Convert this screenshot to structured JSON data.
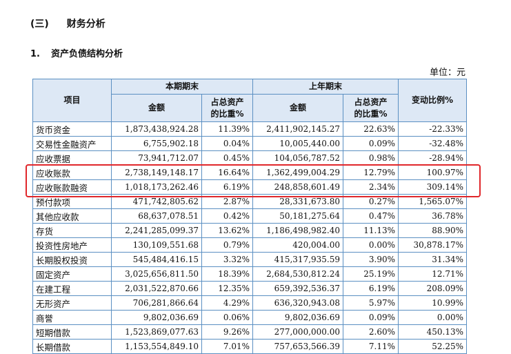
{
  "section_title": {
    "number": "(三)",
    "text": "财务分析"
  },
  "subsection_title": {
    "number": "1.",
    "text": "资产负债结构分析"
  },
  "unit_label": "单位：元",
  "table": {
    "headers": {
      "item": "项目",
      "current_period": "本期期末",
      "previous_year": "上年期末",
      "change_ratio": "变动比例%",
      "amount": "金额",
      "share_line1": "占总资产",
      "share_line2": "的比重%"
    },
    "rows": [
      {
        "name": "货币资金",
        "cur_amount": "1,873,438,924.28",
        "cur_share": "11.39%",
        "prev_amount": "2,411,902,145.27",
        "prev_share": "22.63%",
        "change": "-22.33%"
      },
      {
        "name": "交易性金融资产",
        "cur_amount": "6,755,902.18",
        "cur_share": "0.04%",
        "prev_amount": "10,005,440.00",
        "prev_share": "0.09%",
        "change": "-32.48%"
      },
      {
        "name": "应收票据",
        "cur_amount": "73,941,712.07",
        "cur_share": "0.45%",
        "prev_amount": "104,056,787.52",
        "prev_share": "0.98%",
        "change": "-28.94%"
      },
      {
        "name": "应收账款",
        "cur_amount": "2,738,149,148.17",
        "cur_share": "16.64%",
        "prev_amount": "1,362,499,004.29",
        "prev_share": "12.79%",
        "change": "100.97%"
      },
      {
        "name": "应收账款融资",
        "cur_amount": "1,018,173,262.46",
        "cur_share": "6.19%",
        "prev_amount": "248,858,601.49",
        "prev_share": "2.34%",
        "change": "309.14%"
      },
      {
        "name": "预付款项",
        "cur_amount": "471,742,805.62",
        "cur_share": "2.87%",
        "prev_amount": "28,331,673.80",
        "prev_share": "0.27%",
        "change": "1,565.07%"
      },
      {
        "name": "其他应收款",
        "cur_amount": "68,637,078.51",
        "cur_share": "0.42%",
        "prev_amount": "50,181,275.64",
        "prev_share": "0.47%",
        "change": "36.78%"
      },
      {
        "name": "存货",
        "cur_amount": "2,241,285,099.37",
        "cur_share": "13.62%",
        "prev_amount": "1,186,498,982.40",
        "prev_share": "11.13%",
        "change": "88.90%"
      },
      {
        "name": "投资性房地产",
        "cur_amount": "130,109,551.68",
        "cur_share": "0.79%",
        "prev_amount": "420,004.00",
        "prev_share": "0.00%",
        "change": "30,878.17%"
      },
      {
        "name": "长期股权投资",
        "cur_amount": "545,484,416.15",
        "cur_share": "3.32%",
        "prev_amount": "415,317,935.59",
        "prev_share": "3.90%",
        "change": "31.34%"
      },
      {
        "name": "固定资产",
        "cur_amount": "3,025,656,811.50",
        "cur_share": "18.39%",
        "prev_amount": "2,684,530,812.24",
        "prev_share": "25.19%",
        "change": "12.71%"
      },
      {
        "name": "在建工程",
        "cur_amount": "2,031,522,870.66",
        "cur_share": "12.35%",
        "prev_amount": "659,392,536.37",
        "prev_share": "6.19%",
        "change": "208.09%"
      },
      {
        "name": "无形资产",
        "cur_amount": "706,281,866.64",
        "cur_share": "4.29%",
        "prev_amount": "636,320,943.08",
        "prev_share": "5.97%",
        "change": "10.99%"
      },
      {
        "name": "商誉",
        "cur_amount": "9,802,036.69",
        "cur_share": "0.06%",
        "prev_amount": "9,802,036.69",
        "prev_share": "0.09%",
        "change": "0.00%"
      },
      {
        "name": "短期借款",
        "cur_amount": "1,523,869,077.63",
        "cur_share": "9.26%",
        "prev_amount": "277,000,000.00",
        "prev_share": "2.60%",
        "change": "450.13%"
      },
      {
        "name": "长期借款",
        "cur_amount": "1,153,554,849.10",
        "cur_share": "7.01%",
        "prev_amount": "757,653,566.39",
        "prev_share": "7.11%",
        "change": "52.25%"
      }
    ]
  },
  "highlight_color": "#e0262a"
}
